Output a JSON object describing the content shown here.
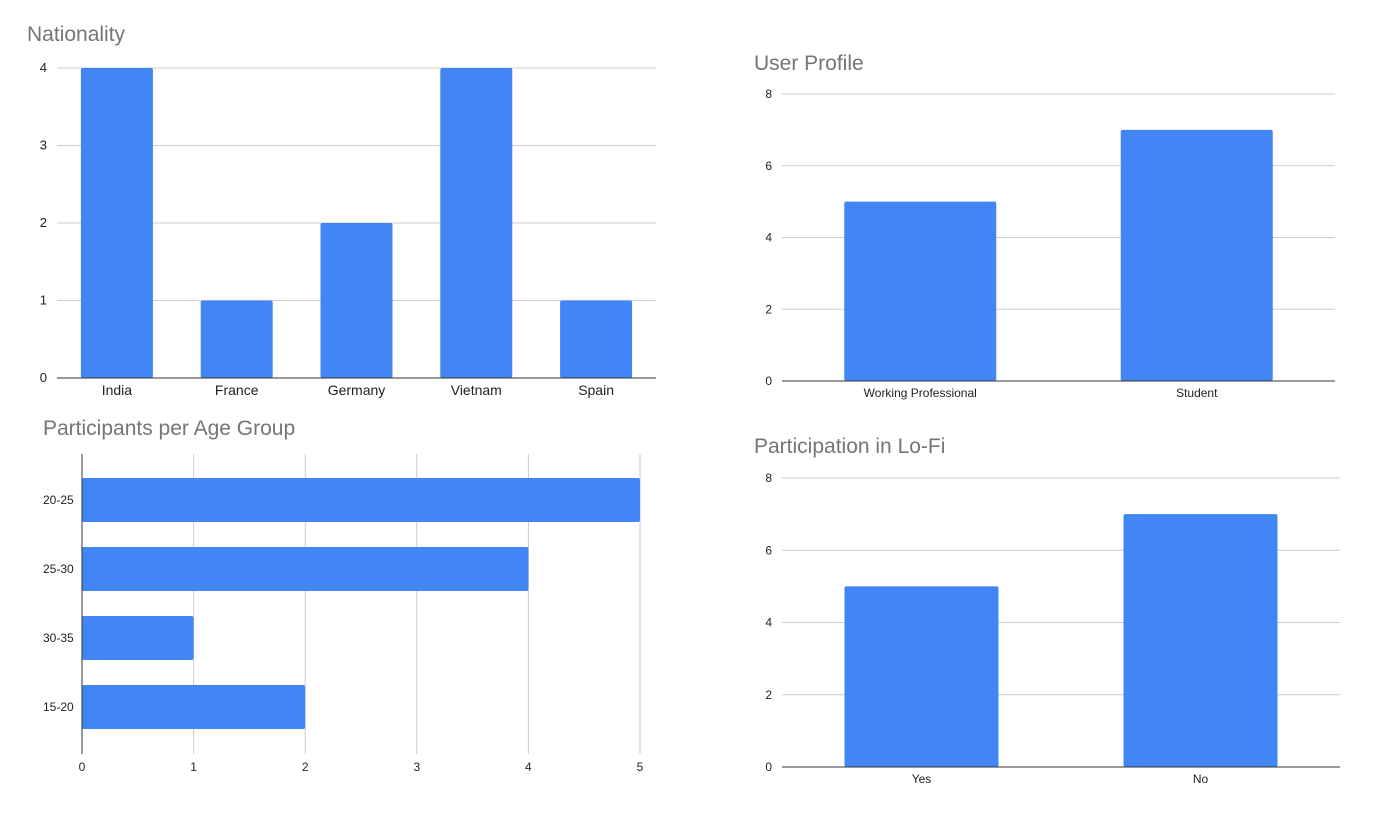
{
  "colors": {
    "bar": "#4285f4",
    "grid": "#cccccc",
    "axis": "#333333",
    "title": "#757575",
    "label": "#222222"
  },
  "chart_data": [
    {
      "id": "nationality",
      "type": "bar",
      "orientation": "vertical",
      "title": "Nationality",
      "xlabel": "",
      "ylabel": "",
      "categories": [
        "India",
        "France",
        "Germany",
        "Vietnam",
        "Spain"
      ],
      "values": [
        4,
        1,
        2,
        4,
        1
      ],
      "ylim": [
        0,
        4
      ],
      "ticks": [
        0,
        1,
        2,
        3,
        4
      ],
      "grid": true,
      "legend": "none"
    },
    {
      "id": "user-profile",
      "type": "bar",
      "orientation": "vertical",
      "title": "User Profile",
      "xlabel": "",
      "ylabel": "",
      "categories": [
        "Working Professional",
        "Student"
      ],
      "values": [
        5,
        7
      ],
      "ylim": [
        0,
        8
      ],
      "ticks": [
        0,
        2,
        4,
        6,
        8
      ],
      "grid": true,
      "legend": "none"
    },
    {
      "id": "age-group",
      "type": "bar",
      "orientation": "horizontal",
      "title": "Participants per Age Group",
      "xlabel": "",
      "ylabel": "",
      "categories": [
        "20-25",
        "25-30",
        "30-35",
        "15-20"
      ],
      "values": [
        5,
        4,
        1,
        2
      ],
      "xlim": [
        0,
        5
      ],
      "ticks": [
        0,
        1,
        2,
        3,
        4,
        5
      ],
      "grid": true,
      "legend": "none"
    },
    {
      "id": "lofi",
      "type": "bar",
      "orientation": "vertical",
      "title": "Participation in Lo-Fi",
      "xlabel": "",
      "ylabel": "",
      "categories": [
        "Yes",
        "No"
      ],
      "values": [
        5,
        7
      ],
      "ylim": [
        0,
        8
      ],
      "ticks": [
        0,
        2,
        4,
        6,
        8
      ],
      "grid": true,
      "legend": "none"
    }
  ]
}
